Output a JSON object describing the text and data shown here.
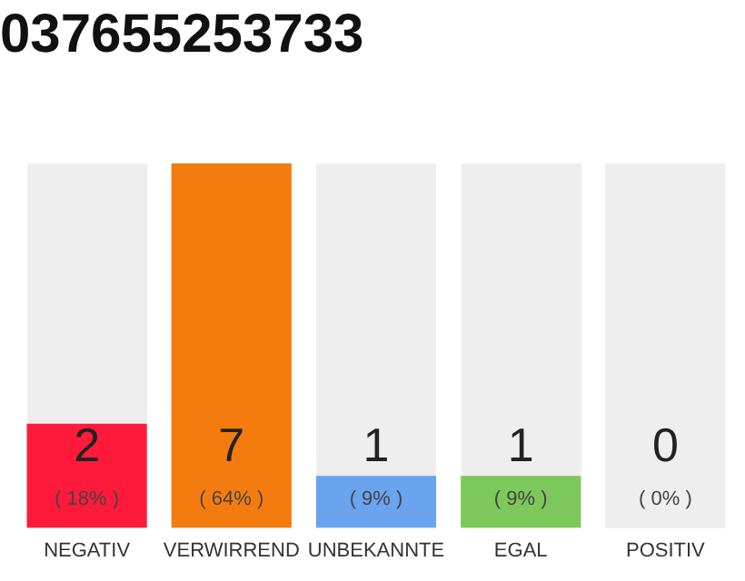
{
  "chart_data": {
    "type": "bar",
    "title": "037655253733",
    "categories": [
      "NEGATIV",
      "VERWIRREND",
      "UNBEKANNTE",
      "EGAL",
      "POSITIV"
    ],
    "values": [
      2,
      7,
      1,
      1,
      0
    ],
    "colors": [
      "#ff1a3c",
      "#f47c0e",
      "#6aa3ee",
      "#7dc85b",
      "#dddddd"
    ],
    "ylim": [
      0,
      7
    ],
    "data_labels": true,
    "tick_labels": "x",
    "grid": false,
    "legend": false,
    "annotations": [
      "( 18% )",
      "( 64% )",
      "( 9% )",
      "( 9% )",
      "( 0% )"
    ]
  }
}
